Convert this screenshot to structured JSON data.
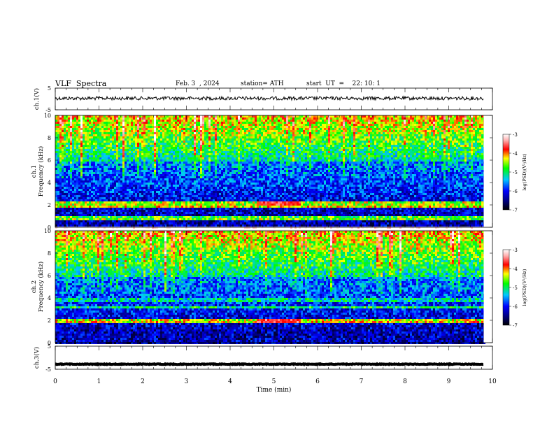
{
  "header": {
    "title": "VLF  Spectra",
    "date": "Feb. 3  , 2024",
    "station": "station= ATH",
    "start_ut": "start  UT  =    22: 10: 1"
  },
  "chart_data": [
    {
      "type": "line",
      "panel": "ch1-waveform",
      "ylabel": "ch.1(V)",
      "ylim": [
        -5,
        5
      ],
      "y_ticks": [
        "5",
        "-5"
      ],
      "x_range_min": [
        0,
        9.8
      ],
      "baseline_v": 0.3,
      "amplitude_v": 0.8
    },
    {
      "type": "heatmap",
      "panel": "ch1-spectrogram",
      "ylabel": "ch.1\nFrequency  (kHz)",
      "ylim": [
        0,
        10
      ],
      "y_ticks": [
        "0",
        "2",
        "4",
        "6",
        "8",
        "10"
      ],
      "x_range_min": [
        0,
        9.8
      ],
      "colorbar": {
        "label": "log(PSD)(V²/Hz)",
        "range": [
          -7,
          -3
        ],
        "ticks": [
          "-3",
          "-4",
          "-5",
          "-6",
          "-7"
        ]
      },
      "bands": [
        {
          "f_khz": 0.1,
          "level": -2.8
        },
        {
          "f_khz": 0.35,
          "level": -7.0
        },
        {
          "f_khz": 0.8,
          "level": -4.6
        },
        {
          "f_khz": 1.05,
          "level": -4.8
        },
        {
          "f_khz": 2.0,
          "level": -4.3
        },
        {
          "f_khz": 2.2,
          "level": -4.5
        },
        {
          "f_khz": 3.7,
          "level": -6.3
        }
      ],
      "event": {
        "t_start_min": 4.6,
        "t_end_min": 5.6,
        "f_khz": 2.2,
        "level": -3.7
      }
    },
    {
      "type": "heatmap",
      "panel": "ch2-spectrogram",
      "ylabel": "ch.2\nFrequency  (kHz)",
      "ylim": [
        0,
        10
      ],
      "y_ticks": [
        "0",
        "2",
        "4",
        "6",
        "8",
        "10"
      ],
      "x_range_min": [
        0,
        9.8
      ],
      "colorbar": {
        "label": "log(PSD)(V²/Hz)",
        "range": [
          -7,
          -3
        ],
        "ticks": [
          "-3",
          "-4",
          "-5",
          "-6",
          "-7"
        ]
      },
      "bands": [
        {
          "f_khz": 0.1,
          "level": -7.0
        },
        {
          "f_khz": 1.9,
          "level": -4.2
        },
        {
          "f_khz": 2.1,
          "level": -4.4
        },
        {
          "f_khz": 3.3,
          "level": -5.0
        },
        {
          "f_khz": 3.9,
          "level": -5.2
        }
      ],
      "event": {
        "t_start_min": 4.6,
        "t_end_min": 5.6,
        "f_khz": 2.0,
        "level": -3.6
      }
    },
    {
      "type": "line",
      "panel": "ch3-waveform",
      "ylabel": "ch.3(V)",
      "ylim": [
        -5,
        5
      ],
      "y_ticks": [
        "5",
        "-5"
      ],
      "x_range_min": [
        0,
        9.8
      ],
      "baseline_v": -2.8,
      "amplitude_v": 0.15,
      "xlabel": "Time  (min)",
      "xlim": [
        0,
        10
      ],
      "x_ticks": [
        "0",
        "1",
        "2",
        "3",
        "4",
        "5",
        "6",
        "7",
        "8",
        "9",
        "10"
      ]
    }
  ]
}
